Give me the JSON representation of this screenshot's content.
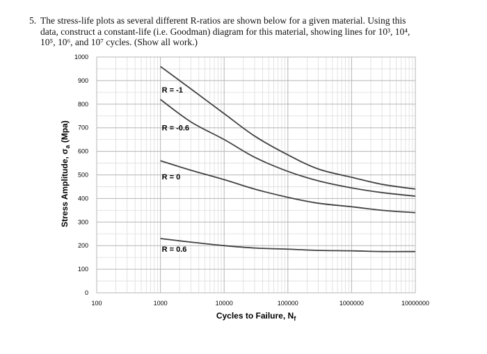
{
  "problem": {
    "number": "5.",
    "line1": "The stress-life plots as several different R-ratios are shown below for a given material.  Using this",
    "line2": "data, construct a constant-life (i.e. Goodman) diagram for this material, showing lines for 10³, 10⁴,",
    "line3": "10⁵, 10⁶, and 10⁷ cycles. (Show all work.)"
  },
  "chart_data": {
    "type": "line",
    "xscale": "log",
    "xlim": [
      100,
      10000000
    ],
    "ylim": [
      0,
      1000
    ],
    "xticks": [
      "100",
      "1000",
      "10000",
      "100000",
      "1000000",
      "10000000"
    ],
    "yticks": [
      "0",
      "100",
      "200",
      "300",
      "400",
      "500",
      "600",
      "700",
      "800",
      "900",
      "1000"
    ],
    "xlabel": "Cycles to Failure, N",
    "xlabel_sub": "f",
    "ylabel": "Stress Amplitude, σ",
    "ylabel_sub": "a",
    "ylabel_unit": " (Mpa)",
    "grid": true,
    "series": [
      {
        "name": "R = -1",
        "x": [
          1000,
          3000,
          10000,
          30000,
          100000,
          300000,
          1000000,
          3000000,
          10000000
        ],
        "y": [
          960,
          865,
          760,
          665,
          585,
          525,
          490,
          460,
          440
        ]
      },
      {
        "name": "R = -0.6",
        "x": [
          1000,
          3000,
          10000,
          30000,
          100000,
          300000,
          1000000,
          3000000,
          10000000
        ],
        "y": [
          820,
          725,
          650,
          575,
          515,
          475,
          445,
          425,
          410
        ]
      },
      {
        "name": "R = 0",
        "x": [
          1000,
          3000,
          10000,
          30000,
          100000,
          300000,
          1000000,
          3000000,
          10000000
        ],
        "y": [
          560,
          520,
          480,
          440,
          405,
          380,
          365,
          350,
          340
        ]
      },
      {
        "name": "R = 0.6",
        "x": [
          1000,
          3000,
          10000,
          30000,
          100000,
          300000,
          1000000,
          3000000,
          10000000
        ],
        "y": [
          230,
          215,
          200,
          190,
          185,
          180,
          178,
          175,
          175
        ]
      }
    ]
  }
}
